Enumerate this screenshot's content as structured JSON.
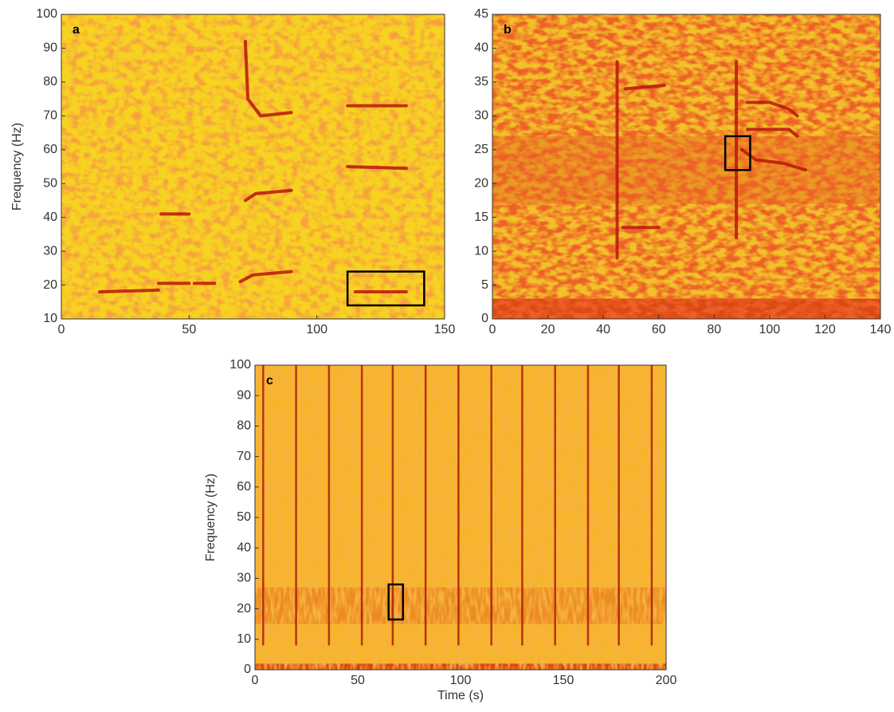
{
  "chart_data": [
    {
      "type": "spectrogram",
      "label": "a",
      "ylabel": "Frequency (Hz)",
      "xlim": [
        0,
        150
      ],
      "ylim": [
        10,
        100
      ],
      "xticks": [
        0,
        50,
        100,
        150
      ],
      "yticks": [
        10,
        20,
        30,
        40,
        50,
        60,
        70,
        80,
        90,
        100
      ],
      "traces": [
        {
          "x": [
            15,
            38
          ],
          "y": [
            18,
            18.5
          ]
        },
        {
          "x": [
            38,
            50
          ],
          "y": [
            20.5,
            20.5
          ]
        },
        {
          "x": [
            52,
            60
          ],
          "y": [
            20.5,
            20.5
          ]
        },
        {
          "x": [
            70,
            75,
            90
          ],
          "y": [
            21,
            23,
            24
          ]
        },
        {
          "x": [
            72,
            76,
            90
          ],
          "y": [
            45,
            47,
            48
          ]
        },
        {
          "x": [
            72,
            73,
            78,
            90
          ],
          "y": [
            92,
            75,
            70,
            71
          ]
        },
        {
          "x": [
            115,
            135
          ],
          "y": [
            18,
            18
          ]
        },
        {
          "x": [
            112,
            135
          ],
          "y": [
            55,
            54.5
          ]
        },
        {
          "x": [
            112,
            135
          ],
          "y": [
            73,
            73
          ]
        },
        {
          "x": [
            39,
            50
          ],
          "y": [
            41,
            41
          ]
        }
      ],
      "boxes": [
        {
          "x": [
            112,
            142
          ],
          "y": [
            14,
            24
          ]
        }
      ]
    },
    {
      "type": "spectrogram",
      "label": "b",
      "xlim": [
        0,
        140
      ],
      "ylim": [
        0,
        45
      ],
      "xticks": [
        0,
        20,
        40,
        60,
        80,
        100,
        120,
        140
      ],
      "yticks": [
        0,
        5,
        10,
        15,
        20,
        25,
        30,
        35,
        40,
        45
      ],
      "traces": [
        {
          "x": [
            48,
            62
          ],
          "y": [
            34,
            34.5
          ]
        },
        {
          "x": [
            47,
            60
          ],
          "y": [
            13.5,
            13.5
          ]
        },
        {
          "x": [
            90,
            95,
            105,
            113
          ],
          "y": [
            25,
            23.5,
            23,
            22
          ]
        },
        {
          "x": [
            92,
            100,
            107,
            110
          ],
          "y": [
            28,
            28,
            28,
            27
          ]
        },
        {
          "x": [
            92,
            100,
            107,
            110
          ],
          "y": [
            32,
            32,
            31,
            30
          ]
        },
        {
          "x": [
            45,
            45
          ],
          "y": [
            9,
            38
          ]
        },
        {
          "x": [
            88,
            88
          ],
          "y": [
            12,
            38
          ]
        }
      ],
      "boxes": [
        {
          "x": [
            84,
            93
          ],
          "y": [
            22,
            27
          ]
        }
      ]
    },
    {
      "type": "spectrogram",
      "label": "c",
      "xlabel": "Time (s)",
      "ylabel": "Frequency (Hz)",
      "xlim": [
        0,
        200
      ],
      "ylim": [
        0,
        100
      ],
      "xticks": [
        0,
        50,
        100,
        150,
        200
      ],
      "yticks": [
        0,
        10,
        20,
        30,
        40,
        50,
        60,
        70,
        80,
        90,
        100
      ],
      "pulses": [
        4,
        20,
        36,
        52,
        67,
        83,
        99,
        115,
        130,
        146,
        162,
        177,
        193
      ],
      "boxes": [
        {
          "x": [
            65,
            72
          ],
          "y": [
            16.5,
            28
          ]
        }
      ]
    }
  ]
}
